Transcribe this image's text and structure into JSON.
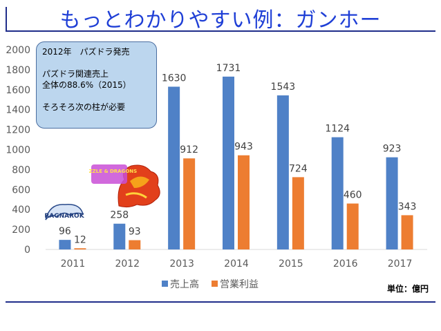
{
  "slide_title": "もっとわかりやすい例：ガンホー",
  "callout": {
    "line1": "2012年　パズドラ発売",
    "line2": "パズドラ関連売上",
    "line3": "全体の88.6%（2015）",
    "line4": "そろそろ次の柱が必要"
  },
  "unit_label": "単位：億円",
  "logos": {
    "ragnarok": "RAGNAROK",
    "pazudora": "PUZZLE & DRAGONS"
  },
  "colors": {
    "sales": "#4f81c7",
    "profit": "#ed7d31",
    "title": "#1f3fd6"
  },
  "chart_data": {
    "type": "bar",
    "categories": [
      "2011",
      "2012",
      "2013",
      "2014",
      "2015",
      "2016",
      "2017"
    ],
    "series": [
      {
        "name": "売上高",
        "values": [
          96,
          258,
          1630,
          1731,
          1543,
          1124,
          923
        ]
      },
      {
        "name": "営業利益",
        "values": [
          12,
          93,
          912,
          943,
          724,
          460,
          343
        ]
      }
    ],
    "ylim": [
      0,
      2000
    ],
    "yticks": [
      0,
      200,
      400,
      600,
      800,
      1000,
      1200,
      1400,
      1600,
      1800,
      2000
    ],
    "grid": false,
    "legend": "bottom"
  }
}
